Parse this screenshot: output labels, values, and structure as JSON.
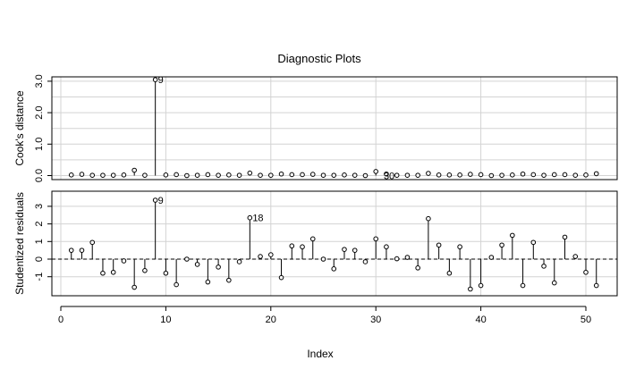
{
  "chart_data": [
    {
      "type": "scatter",
      "panel": "top",
      "title": "Diagnostic Plots",
      "ylabel": "Cook's distance",
      "xlabel": "",
      "xlim": [
        0,
        51
      ],
      "ylim": [
        0,
        3.0
      ],
      "yticks": [
        "0.0",
        "1.0",
        "2.0",
        "3.0"
      ],
      "x": [
        1,
        2,
        3,
        4,
        5,
        6,
        7,
        8,
        9,
        10,
        11,
        12,
        13,
        14,
        15,
        16,
        17,
        18,
        19,
        20,
        21,
        22,
        23,
        24,
        25,
        26,
        27,
        28,
        29,
        30,
        31,
        32,
        33,
        34,
        35,
        36,
        37,
        38,
        39,
        40,
        41,
        42,
        43,
        44,
        45,
        46,
        47,
        48,
        49,
        50,
        51
      ],
      "values": [
        0.02,
        0.04,
        0.01,
        0.01,
        0.01,
        0.02,
        0.17,
        0.01,
        3.05,
        0.02,
        0.03,
        0.0,
        0.01,
        0.03,
        0.01,
        0.02,
        0.01,
        0.08,
        0.01,
        0.01,
        0.05,
        0.03,
        0.03,
        0.04,
        0.01,
        0.01,
        0.02,
        0.01,
        0.0,
        0.13,
        0.05,
        0.01,
        0.01,
        0.01,
        0.07,
        0.02,
        0.02,
        0.02,
        0.04,
        0.03,
        0.0,
        0.01,
        0.02,
        0.05,
        0.03,
        0.01,
        0.03,
        0.03,
        0.01,
        0.02,
        0.06
      ],
      "annotations": [
        {
          "x": 9,
          "label": "9"
        },
        {
          "x": 31,
          "label": "30"
        }
      ],
      "grid": true
    },
    {
      "type": "scatter",
      "panel": "bottom",
      "ylabel": "Studentized residuals",
      "xlabel": "Index",
      "xlim": [
        0,
        51
      ],
      "ylim": [
        -1.9,
        3.3
      ],
      "yticks": [
        "-1",
        "0",
        "1",
        "2",
        "3"
      ],
      "xticks": [
        "0",
        "10",
        "20",
        "30",
        "40",
        "50"
      ],
      "x": [
        1,
        2,
        3,
        4,
        5,
        6,
        7,
        8,
        9,
        10,
        11,
        12,
        13,
        14,
        15,
        16,
        17,
        18,
        19,
        20,
        21,
        22,
        23,
        24,
        25,
        26,
        27,
        28,
        29,
        30,
        31,
        32,
        33,
        34,
        35,
        36,
        37,
        38,
        39,
        40,
        41,
        42,
        43,
        44,
        45,
        46,
        47,
        48,
        49,
        50,
        51
      ],
      "values": [
        0.5,
        0.5,
        0.95,
        -0.8,
        -0.75,
        -0.1,
        -1.6,
        -0.65,
        3.35,
        -0.8,
        -1.45,
        0.0,
        -0.3,
        -1.3,
        -0.45,
        -1.2,
        -0.15,
        2.35,
        0.15,
        0.25,
        -1.05,
        0.75,
        0.7,
        1.15,
        0.0,
        -0.55,
        0.55,
        0.5,
        -0.15,
        1.15,
        0.7,
        0.02,
        0.1,
        -0.5,
        2.3,
        0.8,
        -0.8,
        0.7,
        -1.7,
        -1.5,
        0.1,
        0.8,
        1.35,
        -1.5,
        0.95,
        -0.4,
        -1.35,
        1.25,
        0.15,
        -0.75,
        -1.5
      ],
      "annotations": [
        {
          "x": 9,
          "label": "9"
        },
        {
          "x": 18,
          "label": "18"
        }
      ],
      "reference_line": 0,
      "grid": true
    }
  ]
}
